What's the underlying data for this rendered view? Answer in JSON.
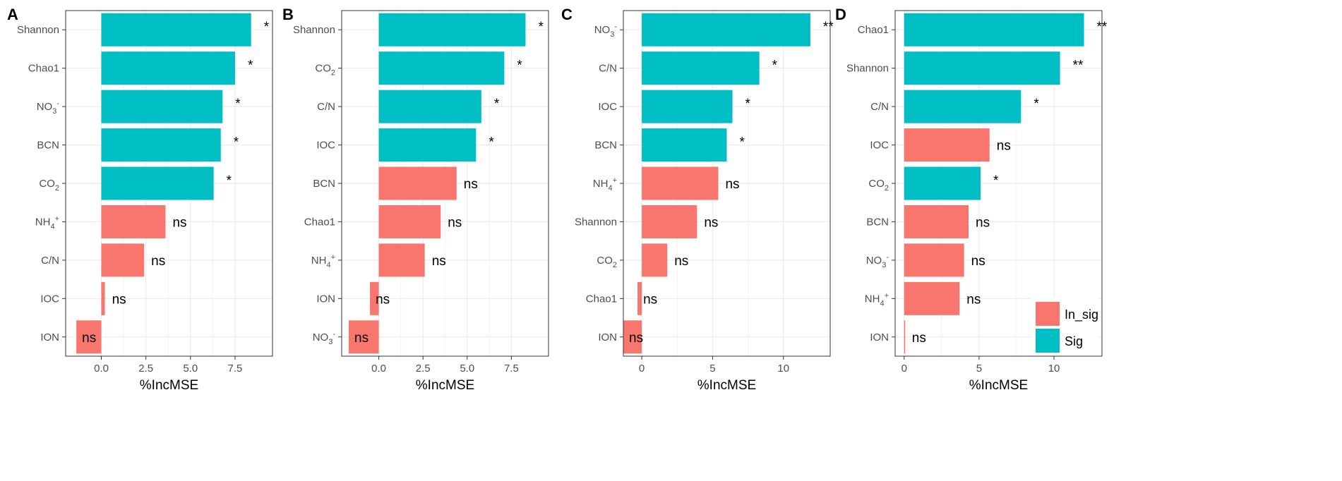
{
  "colors": {
    "Sig": "#00BFC4",
    "In_sig": "#F8766D",
    "grid": "#ebebeb",
    "border": "#333333"
  },
  "legend": {
    "items": [
      {
        "key": "In_sig",
        "label": "In_sig"
      },
      {
        "key": "Sig",
        "label": "Sig"
      }
    ],
    "position": "bottom-right of panel D"
  },
  "chart_data": [
    {
      "type": "bar",
      "orientation": "horizontal",
      "panel": "A",
      "xlabel": "%IncMSE",
      "xlim": [
        -2.0,
        9.6
      ],
      "xticks": [
        0,
        2.5,
        5,
        7.5
      ],
      "xtick_labels": [
        "0.0",
        "2.5",
        "5.0",
        "7.5"
      ],
      "categories": [
        "Shannon",
        "Chao1",
        "NO3-",
        "BCN",
        "CO2",
        "NH4+",
        "C/N",
        "IOC",
        "ION"
      ],
      "values": [
        8.4,
        7.5,
        6.8,
        6.7,
        6.3,
        3.6,
        2.4,
        0.2,
        -1.4
      ],
      "significance": [
        "Sig",
        "Sig",
        "Sig",
        "Sig",
        "Sig",
        "In_sig",
        "In_sig",
        "In_sig",
        "In_sig"
      ],
      "labels": [
        "*",
        "*",
        "*",
        "*",
        "*",
        "ns",
        "ns",
        "ns",
        "ns"
      ]
    },
    {
      "type": "bar",
      "orientation": "horizontal",
      "panel": "B",
      "xlabel": "%IncMSE",
      "xlim": [
        -2.1,
        9.6
      ],
      "xticks": [
        0,
        2.5,
        5,
        7.5
      ],
      "xtick_labels": [
        "0.0",
        "2.5",
        "5.0",
        "7.5"
      ],
      "categories": [
        "Shannon",
        "CO2",
        "C/N",
        "IOC",
        "BCN",
        "Chao1",
        "NH4+",
        "ION",
        "NO3-"
      ],
      "values": [
        8.3,
        7.1,
        5.8,
        5.5,
        4.4,
        3.5,
        2.6,
        -0.5,
        -1.7
      ],
      "significance": [
        "Sig",
        "Sig",
        "Sig",
        "Sig",
        "In_sig",
        "In_sig",
        "In_sig",
        "In_sig",
        "In_sig"
      ],
      "labels": [
        "*",
        "*",
        "*",
        "*",
        "ns",
        "ns",
        "ns",
        "ns",
        "ns"
      ]
    },
    {
      "type": "bar",
      "orientation": "horizontal",
      "panel": "C",
      "xlabel": "%IncMSE",
      "xlim": [
        -1.3,
        13.3
      ],
      "xticks": [
        0,
        5,
        10
      ],
      "xtick_labels": [
        "0",
        "5",
        "10"
      ],
      "categories": [
        "NO3-",
        "C/N",
        "IOC",
        "BCN",
        "NH4+",
        "Shannon",
        "CO2",
        "Chao1",
        "ION"
      ],
      "values": [
        11.9,
        8.3,
        6.4,
        6.0,
        5.4,
        3.9,
        1.8,
        -0.3,
        -1.3
      ],
      "significance": [
        "Sig",
        "Sig",
        "Sig",
        "Sig",
        "In_sig",
        "In_sig",
        "In_sig",
        "In_sig",
        "In_sig"
      ],
      "labels": [
        "**",
        "*",
        "*",
        "*",
        "ns",
        "ns",
        "ns",
        "ns",
        "ns"
      ]
    },
    {
      "type": "bar",
      "orientation": "horizontal",
      "panel": "D",
      "xlabel": "%IncMSE",
      "xlim": [
        -0.6,
        13.2
      ],
      "xticks": [
        0,
        5,
        10
      ],
      "xtick_labels": [
        "0",
        "5",
        "10"
      ],
      "categories": [
        "Chao1",
        "Shannon",
        "C/N",
        "IOC",
        "CO2",
        "BCN",
        "NO3-",
        "NH4+",
        "ION"
      ],
      "values": [
        12.0,
        10.4,
        7.8,
        5.7,
        5.1,
        4.3,
        4.0,
        3.7,
        0.05
      ],
      "significance": [
        "Sig",
        "Sig",
        "Sig",
        "In_sig",
        "Sig",
        "In_sig",
        "In_sig",
        "In_sig",
        "In_sig"
      ],
      "labels": [
        "**",
        "**",
        "*",
        "ns",
        "*",
        "ns",
        "ns",
        "ns",
        "ns"
      ]
    }
  ]
}
